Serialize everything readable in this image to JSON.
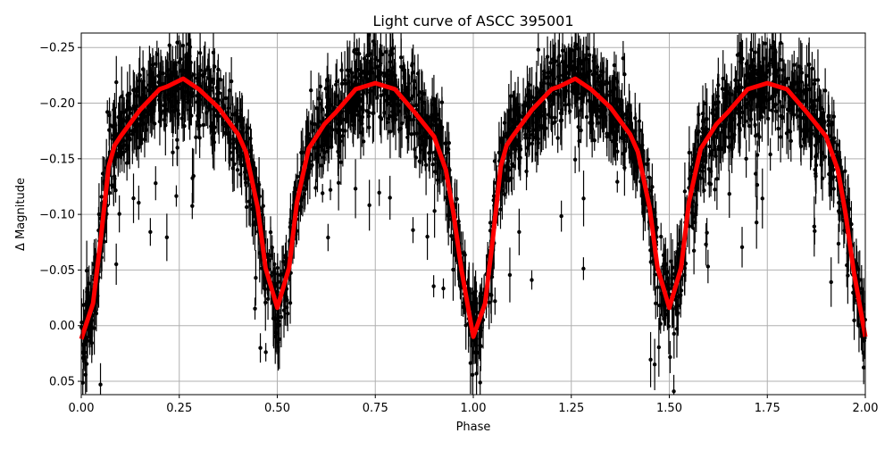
{
  "chart_data": {
    "type": "scatter",
    "title": "Light curve of ASCC 395001",
    "xlabel": "Phase",
    "ylabel": "Δ Magnitude",
    "xlim": [
      0,
      2
    ],
    "ylim": [
      0.062,
      -0.263
    ],
    "y_inverted": true,
    "grid": true,
    "x_ticks": [
      "0.00",
      "0.25",
      "0.50",
      "0.75",
      "1.00",
      "1.25",
      "1.50",
      "1.75",
      "2.00"
    ],
    "y_ticks": [
      "−0.25",
      "−0.20",
      "−0.15",
      "−0.10",
      "−0.05",
      "0.00",
      "0.05"
    ],
    "x_tick_values": [
      0,
      0.25,
      0.5,
      0.75,
      1,
      1.25,
      1.5,
      1.75,
      2
    ],
    "y_tick_values": [
      -0.25,
      -0.2,
      -0.15,
      -0.1,
      -0.05,
      0,
      0.05
    ],
    "observations": {
      "marker": "circle with vertical error bars",
      "color": "#000000",
      "scatter_about_model": 0.02
    },
    "model": {
      "color": "#ff0000",
      "phase": [
        0,
        0.03,
        0.05,
        0.07,
        0.085,
        0.1,
        0.15,
        0.2,
        0.22,
        0.26,
        0.3,
        0.35,
        0.4,
        0.42,
        0.45,
        0.47,
        0.5,
        0.53,
        0.55,
        0.58,
        0.62,
        0.65,
        0.7,
        0.75,
        0.8,
        0.85,
        0.9,
        0.93,
        0.95,
        0.97,
        1.0,
        1.03,
        1.05,
        1.07,
        1.085,
        1.1,
        1.15,
        1.2,
        1.22,
        1.26,
        1.3,
        1.35,
        1.4,
        1.42,
        1.45,
        1.47,
        1.5,
        1.53,
        1.55,
        1.58,
        1.62,
        1.65,
        1.7,
        1.75,
        1.8,
        1.85,
        1.9,
        1.93,
        1.95,
        1.97,
        2.0
      ],
      "magnitude": [
        0.012,
        -0.02,
        -0.079,
        -0.143,
        -0.162,
        -0.17,
        -0.194,
        -0.2125,
        -0.215,
        -0.222,
        -0.2125,
        -0.196,
        -0.172,
        -0.156,
        -0.106,
        -0.052,
        -0.016,
        -0.052,
        -0.111,
        -0.159,
        -0.181,
        -0.192,
        -0.2125,
        -0.218,
        -0.2125,
        -0.192,
        -0.17,
        -0.14,
        -0.1,
        -0.05,
        0.01,
        -0.02,
        -0.079,
        -0.143,
        -0.162,
        -0.17,
        -0.194,
        -0.2125,
        -0.215,
        -0.222,
        -0.2125,
        -0.196,
        -0.172,
        -0.156,
        -0.106,
        -0.052,
        -0.016,
        -0.052,
        -0.111,
        -0.159,
        -0.181,
        -0.192,
        -0.2125,
        -0.218,
        -0.2125,
        -0.192,
        -0.17,
        -0.14,
        -0.1,
        -0.05,
        0.01
      ]
    }
  }
}
